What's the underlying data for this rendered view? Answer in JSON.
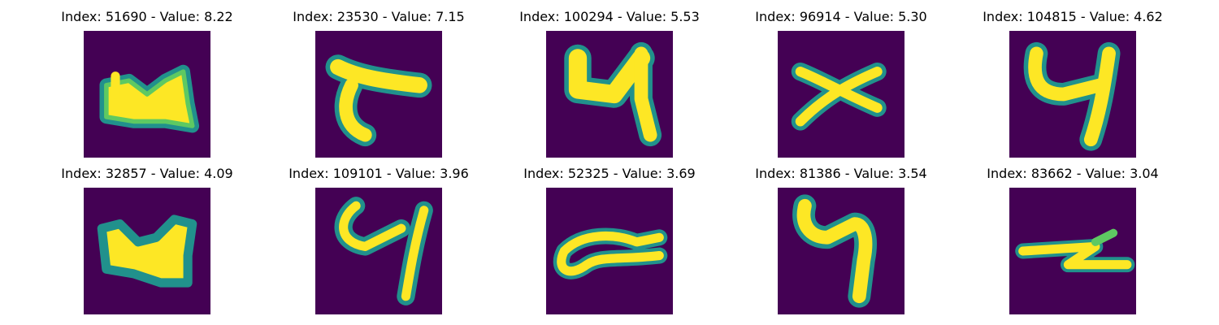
{
  "colors": {
    "background": "#440154",
    "stroke_edge": "#21918c",
    "stroke_mid": "#5ec962",
    "stroke_core": "#fde725"
  },
  "panels": [
    {
      "title": "Index: 51690 - Value: 8.22",
      "glyph": "blob-four-digit"
    },
    {
      "title": "Index: 23530 - Value: 7.15",
      "glyph": "slanted-t-digit"
    },
    {
      "title": "Index: 100294 - Value: 5.53",
      "glyph": "four-digit"
    },
    {
      "title": "Index: 96914 - Value: 5.30",
      "glyph": "x-cross-digit"
    },
    {
      "title": "Index: 104815 - Value: 4.62",
      "glyph": "four-digit"
    },
    {
      "title": "Index: 32857 - Value: 4.09",
      "glyph": "wide-blob-four-digit"
    },
    {
      "title": "Index: 109101 - Value: 3.96",
      "glyph": "thin-four-digit"
    },
    {
      "title": "Index: 52325 - Value: 3.69",
      "glyph": "curl-digit"
    },
    {
      "title": "Index: 81386 - Value: 3.54",
      "glyph": "tall-four-digit"
    },
    {
      "title": "Index: 83662 - Value: 3.04",
      "glyph": "z-stroke-digit"
    }
  ]
}
